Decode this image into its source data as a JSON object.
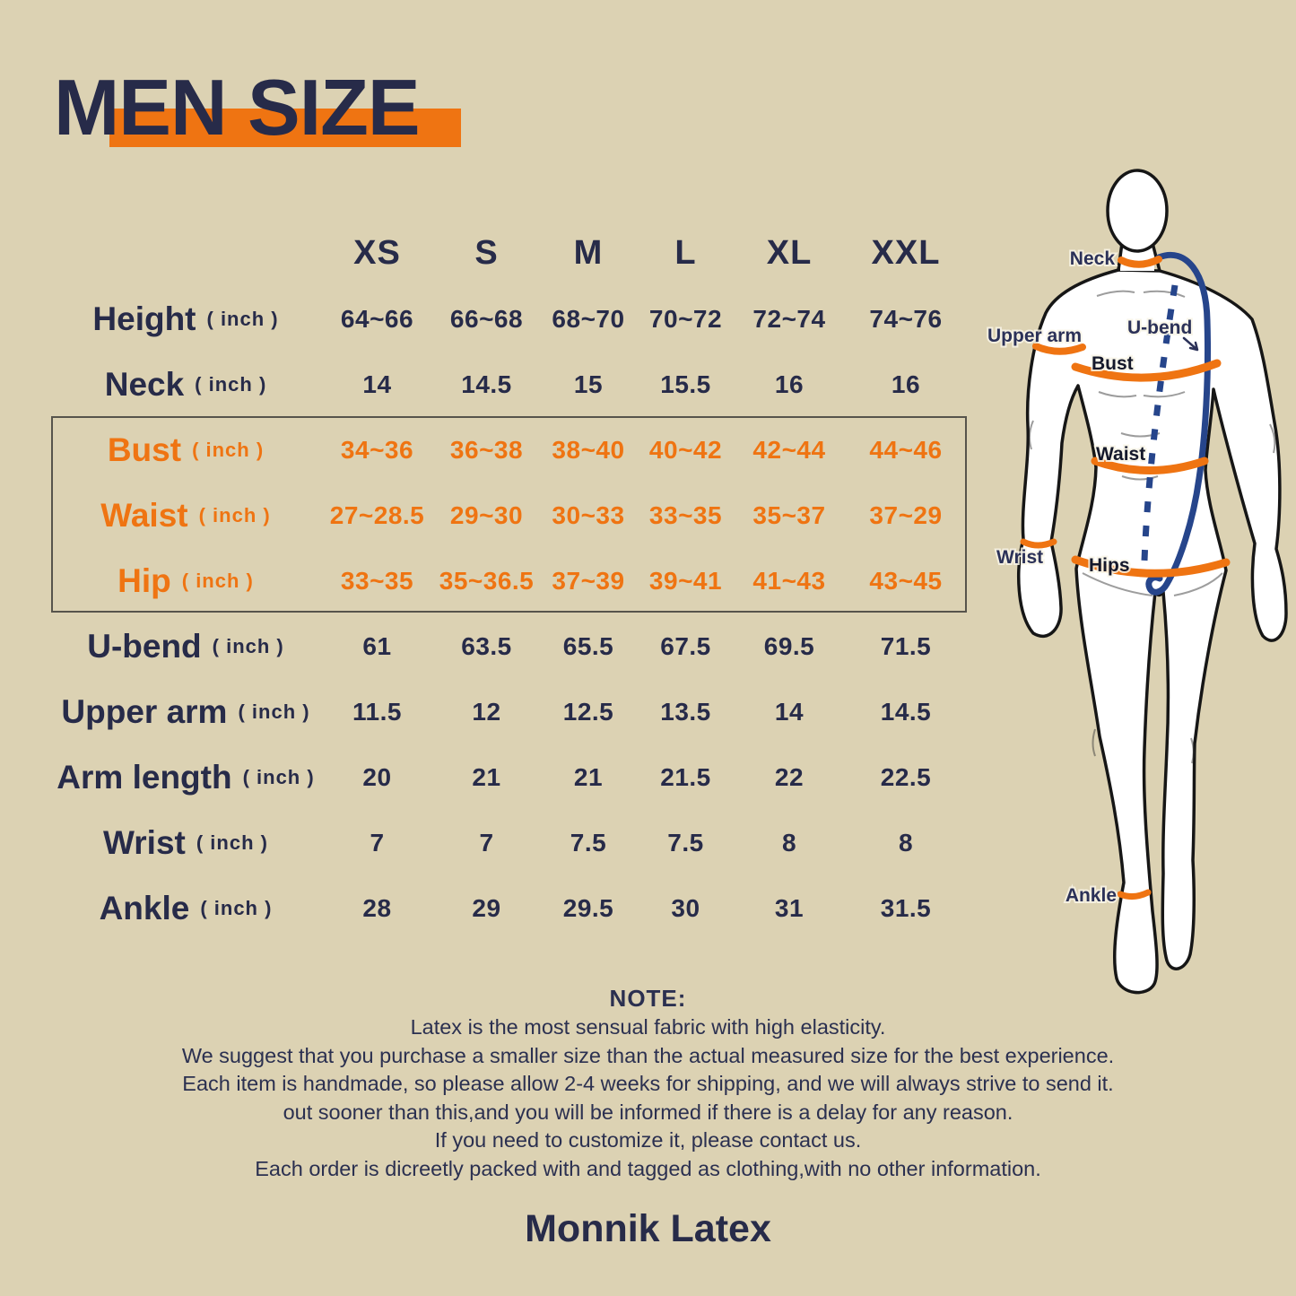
{
  "title": "MEN SIZE",
  "brand": "Monnik Latex",
  "colors": {
    "background": "#dcd2b3",
    "navy": "#272b49",
    "orange": "#ef7412",
    "u_bend_blue": "#26458b",
    "box_border": "#57544c"
  },
  "size_chart": {
    "unit_label": "( inch )",
    "columns": [
      "XS",
      "S",
      "M",
      "L",
      "XL",
      "XXL"
    ],
    "rows": [
      {
        "label": "Height",
        "highlight": false,
        "values": [
          "64~66",
          "66~68",
          "68~70",
          "70~72",
          "72~74",
          "74~76"
        ]
      },
      {
        "label": "Neck",
        "highlight": false,
        "values": [
          "14",
          "14.5",
          "15",
          "15.5",
          "16",
          "16"
        ]
      },
      {
        "label": "Bust",
        "highlight": true,
        "values": [
          "34~36",
          "36~38",
          "38~40",
          "40~42",
          "42~44",
          "44~46"
        ]
      },
      {
        "label": "Waist",
        "highlight": true,
        "values": [
          "27~28.5",
          "29~30",
          "30~33",
          "33~35",
          "35~37",
          "37~29"
        ]
      },
      {
        "label": "Hip",
        "highlight": true,
        "values": [
          "33~35",
          "35~36.5",
          "37~39",
          "39~41",
          "41~43",
          "43~45"
        ]
      },
      {
        "label": "U-bend",
        "highlight": false,
        "values": [
          "61",
          "63.5",
          "65.5",
          "67.5",
          "69.5",
          "71.5"
        ]
      },
      {
        "label": "Upper arm",
        "highlight": false,
        "values": [
          "11.5",
          "12",
          "12.5",
          "13.5",
          "14",
          "14.5"
        ]
      },
      {
        "label": "Arm length",
        "highlight": false,
        "values": [
          "20",
          "21",
          "21",
          "21.5",
          "22",
          "22.5"
        ]
      },
      {
        "label": "Wrist",
        "highlight": false,
        "values": [
          "7",
          "7",
          "7.5",
          "7.5",
          "8",
          "8"
        ]
      },
      {
        "label": "Ankle",
        "highlight": false,
        "values": [
          "28",
          "29",
          "29.5",
          "30",
          "31",
          "31.5"
        ]
      }
    ]
  },
  "figure": {
    "labels": {
      "neck": "Neck",
      "upper_arm": "Upper arm",
      "u_bend": "U-bend",
      "bust": "Bust",
      "waist": "Waist",
      "wrist": "Wrist",
      "hips": "Hips",
      "ankle": "Ankle"
    }
  },
  "note": {
    "heading": "NOTE:",
    "lines": [
      "Latex is the most sensual fabric with high elasticity.",
      "We suggest that you purchase a smaller size than the actual measured size for the best experience.",
      "Each item is handmade, so please allow 2-4 weeks for shipping, and we will always strive to send it.",
      "out sooner than this,and you will be informed if there is a delay for any reason.",
      "If you need to customize it, please contact us.",
      "Each order is dicreetly packed with and tagged as clothing,with no other information."
    ]
  }
}
